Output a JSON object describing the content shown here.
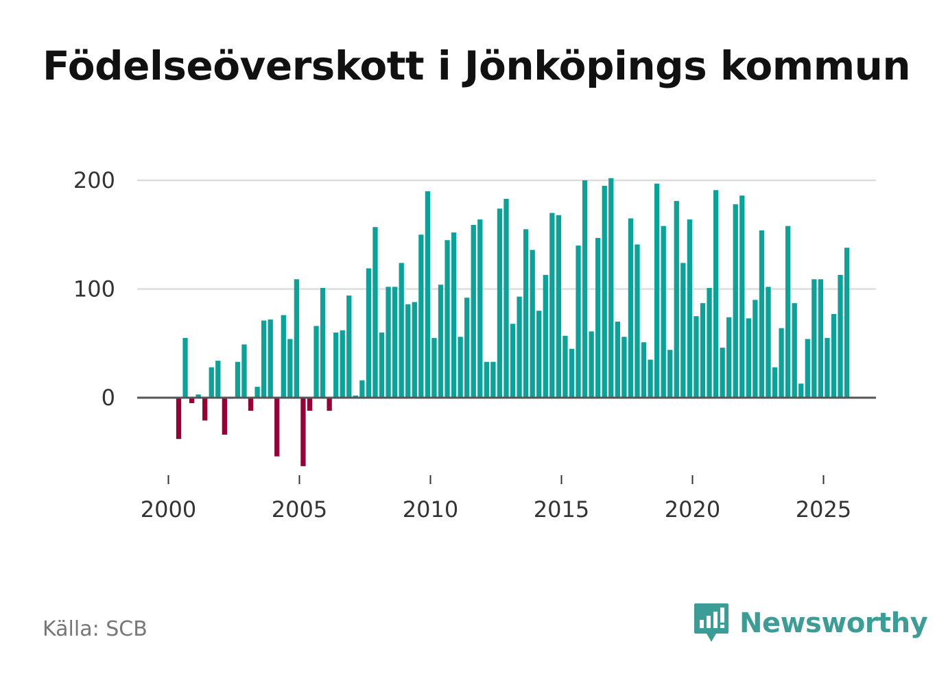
{
  "title": "Födelseöverskott i Jönköpings kommun",
  "source": "Källa: SCB",
  "brand": "Newsworthy",
  "colors": {
    "positive": "#0aa39a",
    "negative": "#960036",
    "grid": "#dddddd",
    "zero_line": "#555555"
  },
  "chart_data": {
    "type": "bar",
    "title": "Födelseöverskott i Jönköpings kommun",
    "xlabel": "",
    "ylabel": "",
    "x_unit": "quarter",
    "start": "2000 Q1",
    "x_tick_labels": [
      "2000",
      "2005",
      "2010",
      "2015",
      "2020",
      "2025"
    ],
    "y_tick_labels": [
      "0",
      "100",
      "200"
    ],
    "ylim": [
      -75,
      210
    ],
    "grid": true,
    "values": [
      -38,
      55,
      -5,
      3,
      -21,
      28,
      34,
      -34,
      -1,
      33,
      49,
      -12,
      10,
      71,
      72,
      -54,
      76,
      54,
      109,
      -63,
      -12,
      66,
      101,
      -12,
      60,
      62,
      94,
      2,
      16,
      119,
      157,
      60,
      102,
      102,
      124,
      86,
      88,
      150,
      190,
      55,
      104,
      145,
      152,
      56,
      92,
      159,
      164,
      33,
      33,
      174,
      183,
      68,
      93,
      155,
      136,
      80,
      113,
      170,
      168,
      57,
      45,
      140,
      200,
      61,
      147,
      195,
      202,
      70,
      56,
      165,
      141,
      51,
      35,
      197,
      158,
      44,
      181,
      124,
      164,
      75,
      87,
      101,
      191,
      46,
      74,
      178,
      186,
      73,
      90,
      154,
      102,
      28,
      64,
      158,
      87,
      13,
      54,
      109,
      109,
      55,
      77,
      113,
      138
    ]
  }
}
